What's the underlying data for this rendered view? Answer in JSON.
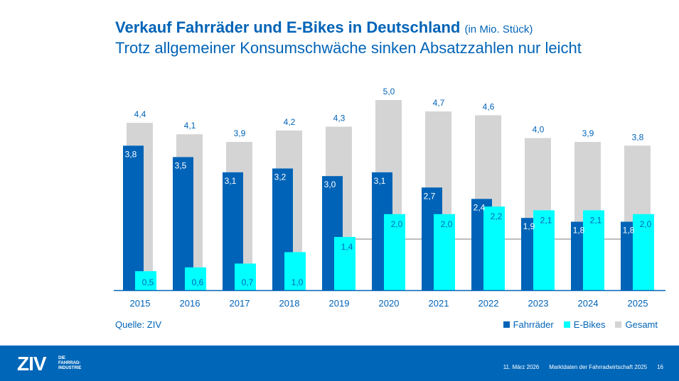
{
  "title": "Verkauf Fahrräder und E-Bikes in Deutschland",
  "title_unit": "(in Mio. Stück)",
  "subtitle": "Trotz allgemeiner Konsumschwäche sinken Absatzzahlen nur leicht",
  "source": "Quelle: ZIV",
  "chart_data": {
    "type": "bar",
    "categories": [
      "2015",
      "2016",
      "2017",
      "2018",
      "2019",
      "2020",
      "2021",
      "2022",
      "2023",
      "2024",
      "2025"
    ],
    "series": [
      {
        "name": "Fahrräder",
        "color": "#0063b7",
        "values": [
          3.8,
          3.5,
          3.1,
          3.2,
          3.0,
          3.1,
          2.7,
          2.4,
          1.9,
          1.8,
          1.8
        ],
        "labels": [
          "3,8",
          "3,5",
          "3,1",
          "3,2",
          "3,0",
          "3,1",
          "2,7",
          "2,4",
          "1,9",
          "1,8",
          "1,8"
        ]
      },
      {
        "name": "E-Bikes",
        "color": "#00ffff",
        "values": [
          0.5,
          0.6,
          0.7,
          1.0,
          1.4,
          2.0,
          2.0,
          2.2,
          2.1,
          2.1,
          2.0
        ],
        "labels": [
          "0,5",
          "0,6",
          "0,7",
          "1,0",
          "1,4",
          "2,0",
          "2,0",
          "2,2",
          "2,1",
          "2,1",
          "2,0"
        ]
      },
      {
        "name": "Gesamt",
        "color": "#d4d4d4",
        "values": [
          4.4,
          4.1,
          3.9,
          4.2,
          4.3,
          5.0,
          4.7,
          4.6,
          4.0,
          3.9,
          3.8
        ],
        "labels": [
          "4,4",
          "4,1",
          "3,9",
          "4,2",
          "4,3",
          "5,0",
          "4,7",
          "4,6",
          "4,0",
          "3,9",
          "3,8"
        ]
      }
    ],
    "ylim": [
      0,
      5.0
    ],
    "legend": "bottom-right"
  },
  "footer": {
    "logo": "ZIV",
    "logo_sub": [
      "DIE",
      "FAHRRAD-",
      "INDUSTRIE"
    ],
    "date": "11. März 2026",
    "doc": "Marktdaten der Fahrradwirtschaft 2025",
    "page": "16"
  }
}
